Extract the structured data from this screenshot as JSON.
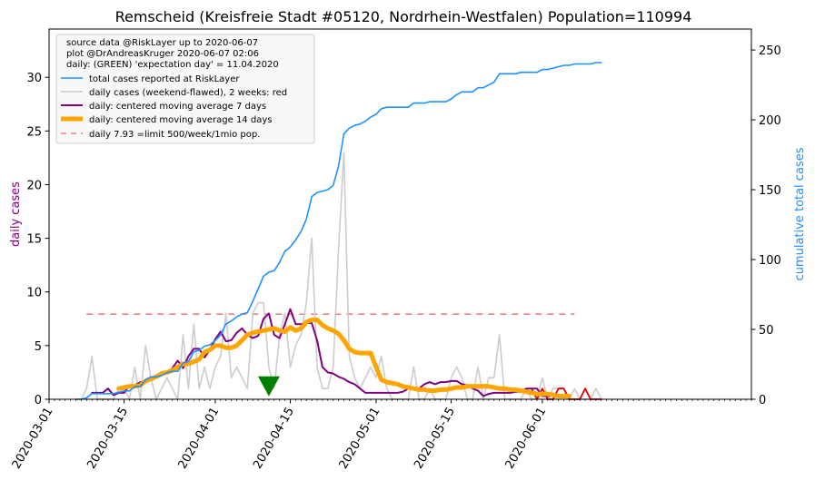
{
  "chart_data": {
    "type": "line",
    "title": "Remscheid (Kreisfreie Stadt #05120, Nordrhein-Westfalen) Population=110994",
    "ylabel_left": "daily cases",
    "ylabel_right": "cumulative total cases",
    "colors": {
      "total": "#1e90ff",
      "daily": "#cccccc",
      "daily_recent": "#dd0000",
      "ma7": "#800080",
      "ma14": "#ffa500",
      "limit": "#f08080",
      "marker": "#008000",
      "left_label": "#800080",
      "right_label": "#1e90ff"
    },
    "x_dates": [
      "2020-03-01",
      "2020-03-02",
      "2020-03-03",
      "2020-03-04",
      "2020-03-05",
      "2020-03-06",
      "2020-03-07",
      "2020-03-08",
      "2020-03-09",
      "2020-03-10",
      "2020-03-11",
      "2020-03-12",
      "2020-03-13",
      "2020-03-14",
      "2020-03-15",
      "2020-03-16",
      "2020-03-17",
      "2020-03-18",
      "2020-03-19",
      "2020-03-20",
      "2020-03-21",
      "2020-03-22",
      "2020-03-23",
      "2020-03-24",
      "2020-03-25",
      "2020-03-26",
      "2020-03-27",
      "2020-03-28",
      "2020-03-29",
      "2020-03-30",
      "2020-03-31",
      "2020-04-01",
      "2020-04-02",
      "2020-04-03",
      "2020-04-04",
      "2020-04-05",
      "2020-04-06",
      "2020-04-07",
      "2020-04-08",
      "2020-04-09",
      "2020-04-10",
      "2020-04-11",
      "2020-04-12",
      "2020-04-13",
      "2020-04-14",
      "2020-04-15",
      "2020-04-16",
      "2020-04-17",
      "2020-04-18",
      "2020-04-19",
      "2020-04-20",
      "2020-04-21",
      "2020-04-22",
      "2020-04-23",
      "2020-04-24",
      "2020-04-25",
      "2020-04-26",
      "2020-04-27",
      "2020-04-28",
      "2020-04-29",
      "2020-04-30",
      "2020-05-01",
      "2020-05-02",
      "2020-05-03",
      "2020-05-04",
      "2020-05-05",
      "2020-05-06",
      "2020-05-07",
      "2020-05-08",
      "2020-05-09",
      "2020-05-10",
      "2020-05-11",
      "2020-05-12",
      "2020-05-13",
      "2020-05-14",
      "2020-05-15",
      "2020-05-16",
      "2020-05-17",
      "2020-05-18",
      "2020-05-19",
      "2020-05-20",
      "2020-05-21",
      "2020-05-22",
      "2020-05-23",
      "2020-05-24",
      "2020-05-25",
      "2020-05-26",
      "2020-05-27",
      "2020-05-28",
      "2020-05-29",
      "2020-05-30",
      "2020-05-31",
      "2020-06-01",
      "2020-06-02",
      "2020-06-03",
      "2020-06-04",
      "2020-06-05",
      "2020-06-06",
      "2020-06-07"
    ],
    "xlim": [
      "2020-03-01",
      "2020-07-10"
    ],
    "x_ticks": [
      "2020-03-01",
      "2020-03-15",
      "2020-04-01",
      "2020-04-15",
      "2020-05-01",
      "2020-05-15",
      "2020-06-01"
    ],
    "ylim_left": [
      0,
      34.5
    ],
    "ylim_right": [
      0,
      265
    ],
    "yticks_left": [
      0,
      5,
      10,
      15,
      20,
      25,
      30
    ],
    "yticks_right": [
      0,
      50,
      100,
      150,
      200,
      250
    ],
    "series": [
      {
        "name": "total cases reported at RiskLayer",
        "axis": "right",
        "start": "2020-03-06",
        "values": [
          0,
          0,
          1,
          4,
          4,
          4,
          4,
          4,
          5,
          6,
          6,
          9,
          9,
          14,
          16,
          16,
          17,
          19,
          20,
          20,
          26,
          27,
          34,
          35,
          38,
          39,
          42,
          46,
          54,
          56,
          59,
          61,
          62,
          70,
          79,
          88,
          91,
          92,
          98,
          106,
          109,
          114,
          120,
          129,
          145,
          148,
          149,
          150,
          153,
          167,
          190,
          194,
          196,
          197,
          199,
          202,
          204,
          208,
          209,
          209,
          209,
          209,
          209,
          212,
          212,
          212,
          213,
          213,
          213,
          213,
          215,
          218,
          220,
          220,
          220,
          223,
          223,
          225,
          227,
          233,
          233,
          233,
          233,
          234,
          234,
          234,
          234,
          236,
          236,
          237,
          238,
          239,
          239,
          240,
          240,
          240,
          240,
          241,
          241
        ]
      },
      {
        "name": "daily cases (weekend-flawed), 2 weeks: red",
        "axis": "left",
        "start": "2020-03-06",
        "values": [
          0,
          0,
          1,
          4,
          0,
          0,
          0,
          0,
          1,
          1,
          0,
          3,
          0,
          5,
          2,
          0,
          1,
          2,
          1,
          0,
          6,
          1,
          7,
          1,
          3,
          1,
          3,
          4,
          8,
          2,
          3,
          2,
          1,
          8,
          9,
          9,
          3,
          1,
          6,
          8,
          3,
          5,
          6,
          9,
          15,
          3,
          1,
          1,
          3,
          14,
          23,
          4,
          2,
          1,
          2,
          3,
          2,
          4,
          1,
          0,
          0,
          0,
          0,
          3,
          0,
          0,
          1,
          0,
          0,
          0,
          2,
          3,
          2,
          0,
          0,
          3,
          0,
          2,
          2,
          6,
          0,
          0,
          0,
          0,
          1,
          0,
          0,
          2,
          0,
          1,
          1,
          1,
          0,
          1,
          0,
          0,
          0,
          1,
          0
        ],
        "recent_values": [
          1,
          0,
          1,
          0,
          0,
          1,
          1,
          0,
          0,
          0,
          1,
          0,
          0,
          0
        ]
      },
      {
        "name": "daily: centered moving average 7 days",
        "axis": "left",
        "start": "2020-03-09",
        "values": [
          0.6,
          0.6,
          0.6,
          1.0,
          0.4,
          0.6,
          0.6,
          1.3,
          1.3,
          1.6,
          1.6,
          2.0,
          2.1,
          2.3,
          2.4,
          2.9,
          3.6,
          2.9,
          4.0,
          4.7,
          4.7,
          3.9,
          4.6,
          5.6,
          6.3,
          5.4,
          5.5,
          6.2,
          6.6,
          6.0,
          5.7,
          5.9,
          7.5,
          8.0,
          6.0,
          5.7,
          7.0,
          8.4,
          7.0,
          7.0,
          7.1,
          7.1,
          5.5,
          3.0,
          2.5,
          2.4,
          2.1,
          1.9,
          1.6,
          1.4,
          1.0,
          0.6,
          0.6,
          0.6,
          0.6,
          0.6,
          0.6,
          0.6,
          0.7,
          1.0,
          1.0,
          1.0,
          1.4,
          1.6,
          1.4,
          1.6,
          1.6,
          1.7,
          1.7,
          1.4,
          1.3,
          1.0,
          0.8,
          0.3,
          0.5,
          0.6,
          0.6,
          0.6,
          0.6,
          0.7,
          0.7,
          1.0,
          1.0,
          1.0,
          0.3,
          0.3,
          0.3,
          0.3,
          0.3
        ]
      },
      {
        "name": "daily: centered moving average 14 days",
        "axis": "left",
        "start": "2020-03-14",
        "values": [
          1.0,
          1.1,
          1.2,
          1.2,
          1.3,
          1.7,
          1.9,
          2.1,
          2.4,
          2.5,
          2.7,
          3.0,
          3.3,
          3.3,
          3.5,
          3.7,
          4.4,
          4.6,
          5.0,
          5.0,
          4.8,
          4.8,
          5.0,
          5.5,
          6.0,
          6.2,
          6.3,
          6.4,
          6.5,
          6.6,
          6.4,
          6.3,
          6.7,
          6.4,
          6.6,
          7.2,
          7.4,
          7.4,
          6.9,
          6.6,
          6.4,
          6.1,
          5.5,
          4.7,
          4.4,
          4.3,
          4.3,
          4.3,
          3.0,
          1.8,
          1.6,
          1.5,
          1.4,
          1.2,
          1.1,
          1.0,
          0.9,
          0.9,
          0.8,
          0.8,
          0.9,
          0.9,
          1.0,
          1.1,
          1.1,
          1.2,
          1.2,
          1.2,
          1.2,
          1.2,
          1.1,
          1.0,
          1.0,
          0.9,
          0.9,
          0.8,
          0.7,
          0.6,
          0.5,
          0.5,
          0.5,
          0.4,
          0.3,
          0.3,
          0.3
        ]
      },
      {
        "name": "daily 7.93 =limit 500/week/1mio pop.",
        "axis": "left",
        "start": "2020-03-08",
        "end": "2020-06-07",
        "constant": 7.93
      }
    ],
    "marker": {
      "date": "2020-04-11",
      "value": 1.2
    },
    "legend": {
      "placement": "top-left",
      "header": [
        "source data @RiskLayer up to 2020-06-07",
        "plot @DrAndreasKruger 2020-06-07 02:06",
        "daily: (GREEN) 'expectation day' = 11.04.2020"
      ]
    }
  }
}
